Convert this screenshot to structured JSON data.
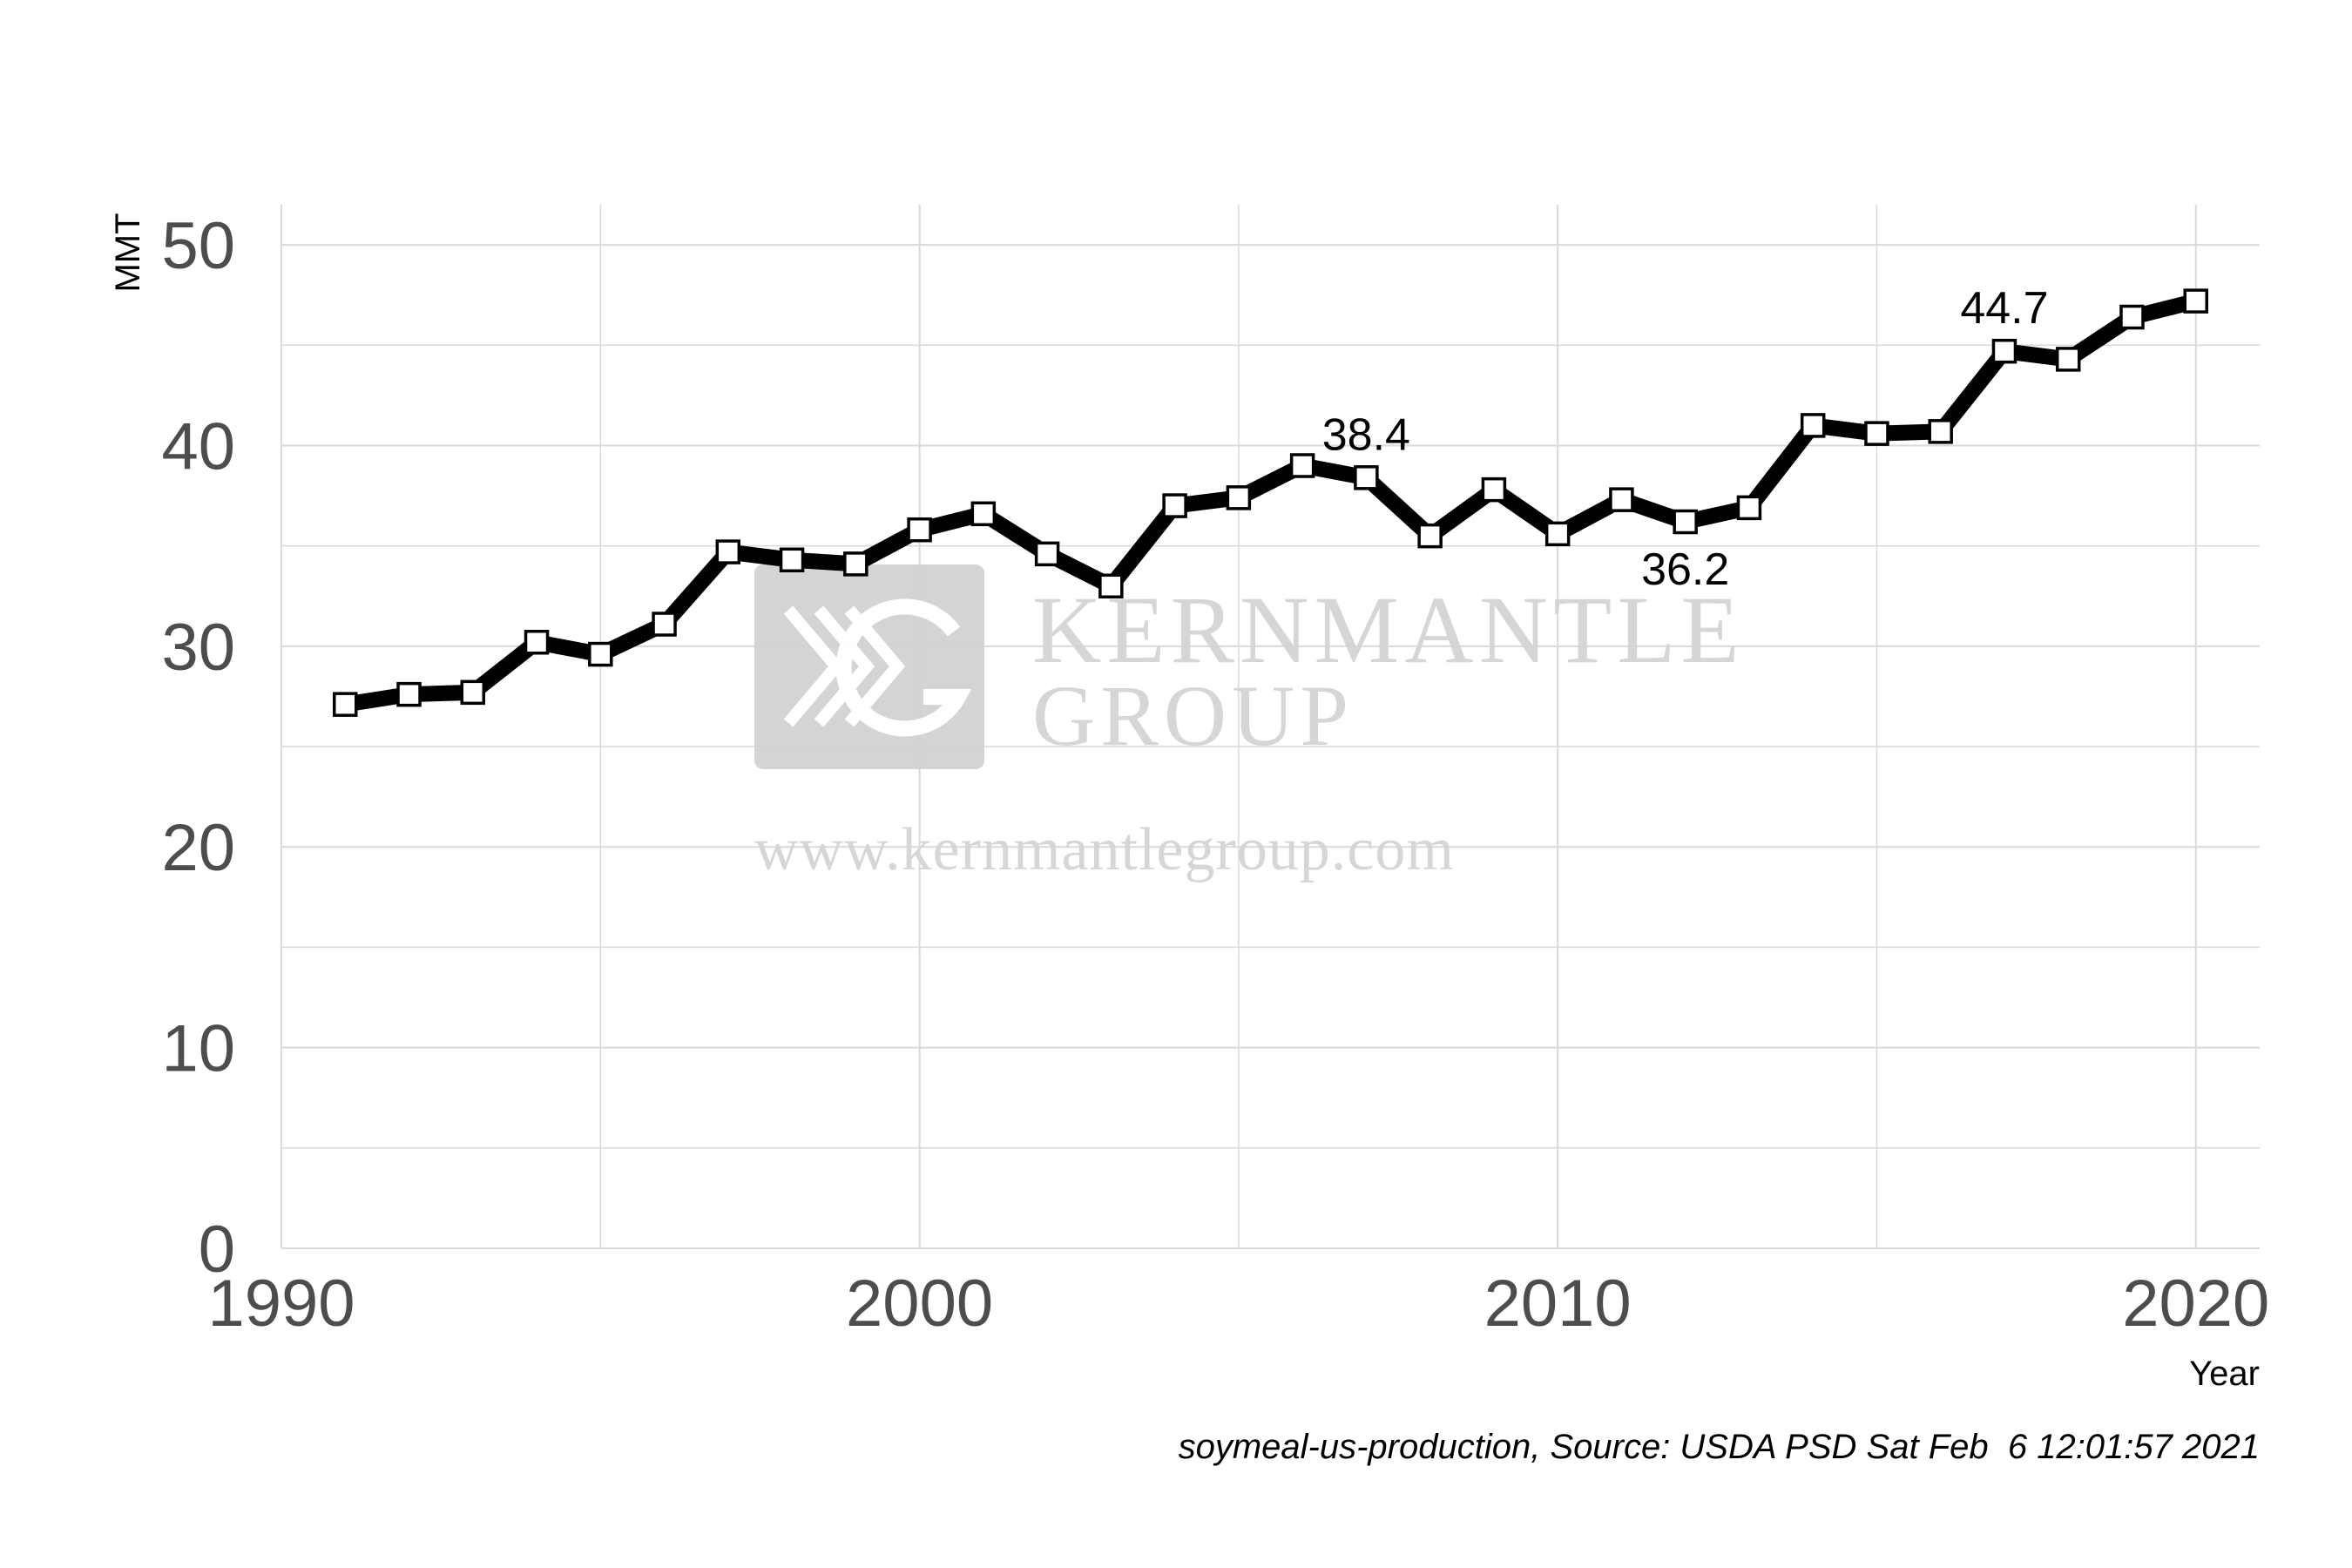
{
  "chart_data": {
    "type": "line",
    "title": "",
    "xlabel": "Year",
    "ylabel": "MMT",
    "xlim": [
      1990,
      2021
    ],
    "ylim": [
      0,
      52
    ],
    "x_ticks": [
      1990,
      2000,
      2010,
      2020
    ],
    "y_ticks": [
      0,
      10,
      20,
      30,
      40,
      50
    ],
    "grid": true,
    "legend": "none",
    "series": [
      {
        "x": [
          1991,
          1992,
          1993,
          1994,
          1995,
          1996,
          1997,
          1998,
          1999,
          2000,
          2001,
          2002,
          2003,
          2004,
          2005,
          2006,
          2007,
          2008,
          2009,
          2010,
          2011,
          2012,
          2013,
          2014,
          2015,
          2016,
          2017,
          2018,
          2019,
          2020
        ],
        "values": [
          27.1,
          27.6,
          27.7,
          30.2,
          29.6,
          31.1,
          34.7,
          34.3,
          34.1,
          35.8,
          36.6,
          34.6,
          33.0,
          37.0,
          37.4,
          39.0,
          38.4,
          35.5,
          37.8,
          35.6,
          37.3,
          36.2,
          36.9,
          41.0,
          40.6,
          40.7,
          44.7,
          44.3,
          46.4,
          47.2
        ]
      }
    ],
    "annotations": [
      {
        "x": 2007,
        "y": 38.4,
        "text": "38.4"
      },
      {
        "x": 2012,
        "y": 36.2,
        "text": "36.2"
      },
      {
        "x": 2017,
        "y": 44.7,
        "text": "44.7"
      }
    ],
    "caption": "soymeal-us-production, Source: USDA PSD Sat Feb  6 12:01:57 2021"
  },
  "watermark": {
    "line1": "KERNMANTLE",
    "line2": "GROUP",
    "url": "www.kernmantlegroup.com"
  },
  "colors": {
    "line": "#000000",
    "marker_fill": "#ffffff",
    "grid": "#d9d9d9",
    "watermark": "#d4d4d4"
  }
}
